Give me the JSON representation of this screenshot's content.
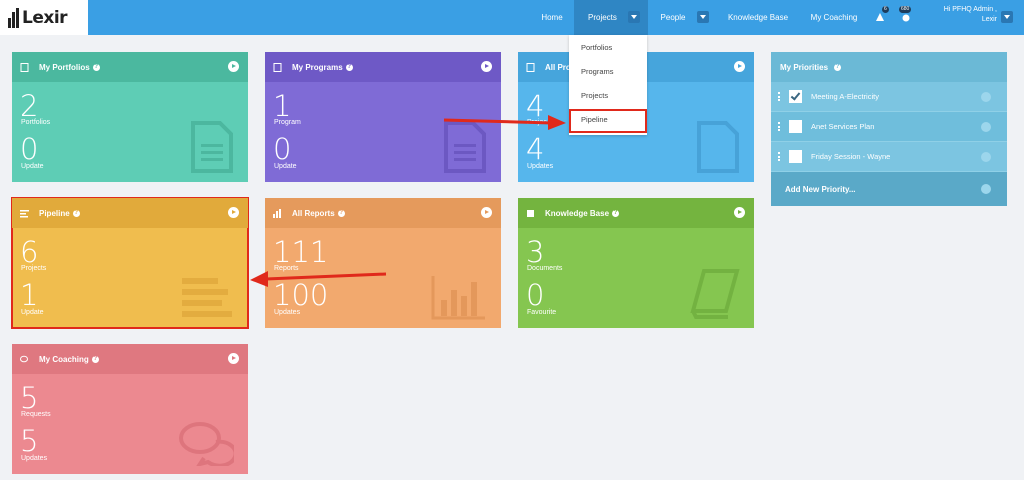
{
  "app": {
    "logo": "Lexir"
  },
  "nav": {
    "home": "Home",
    "projects": "Projects",
    "people": "People",
    "knowledge_base": "Knowledge Base",
    "my_coaching": "My Coaching",
    "notif_count": "6",
    "msg_count": "680",
    "user_line1": "Hi PFHQ Admin ,",
    "user_line2": "Lexir"
  },
  "dropdown": {
    "items": [
      "Portfolios",
      "Programs",
      "Projects",
      "Pipeline"
    ]
  },
  "tiles": {
    "portfolios": {
      "title": "My Portfolios",
      "n1": "2",
      "l1": "Portfolios",
      "n2": "0",
      "l2": "Update"
    },
    "programs": {
      "title": "My Programs",
      "n1": "1",
      "l1": "Program",
      "n2": "0",
      "l2": "Update"
    },
    "projects": {
      "title": "All Pro",
      "n1": "4",
      "l1": "Projec",
      "n2": "4",
      "l2": "Updates"
    },
    "pipeline": {
      "title": "Pipeline",
      "n1": "6",
      "l1": "Projects",
      "n2": "1",
      "l2": "Update"
    },
    "reports": {
      "title": "All Reports",
      "n1": "111",
      "l1": "Reports",
      "n2": "100",
      "l2": "Updates"
    },
    "kb": {
      "title": "Knowledge Base",
      "n1": "3",
      "l1": "Documents",
      "n2": "0",
      "l2": "Favourite"
    },
    "coaching": {
      "title": "My Coaching",
      "n1": "5",
      "l1": "Requests",
      "n2": "5",
      "l2": "Updates"
    }
  },
  "priorities": {
    "title": "My Priorities",
    "items": [
      {
        "label": "Meeting A-Electricity",
        "checked": true
      },
      {
        "label": "Anet Services Plan",
        "checked": false
      },
      {
        "label": "Friday Session - Wayne",
        "checked": false
      }
    ],
    "add_label": "Add New Priority..."
  },
  "colors": {
    "topbar": "#3a9fe4",
    "highlight": "#e0291b"
  }
}
